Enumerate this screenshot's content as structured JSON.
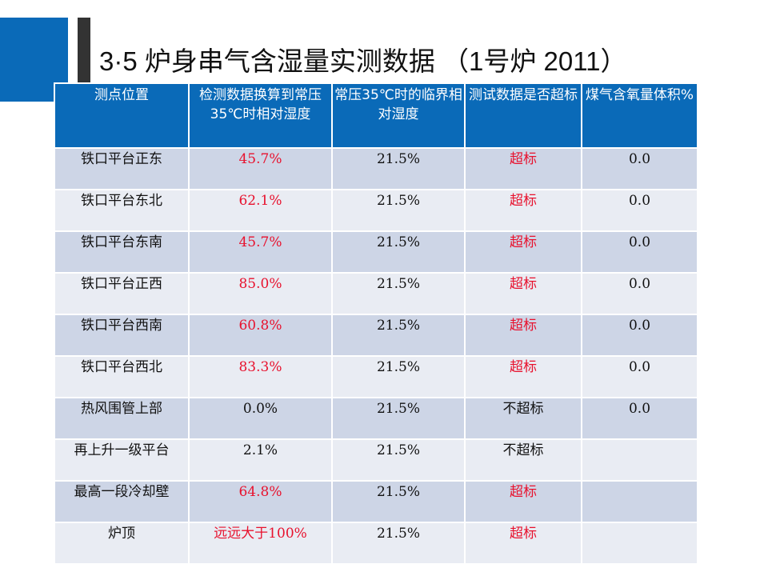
{
  "title": "3·5  炉身串气含湿量实测数据 （1号炉  2011）",
  "colors": {
    "accent": "#0a6ab8",
    "highlight": "#e8112d",
    "row_dark": "#cdd5e6",
    "row_light": "#e9ecf3"
  },
  "table": {
    "headers": [
      "测点位置",
      "检测数据换算到常压35℃时相对湿度",
      "常压35℃时的临界相对湿度",
      "测试数据是否超标",
      "煤气含氧量体积%"
    ],
    "rows": [
      {
        "location": "铁口平台正东",
        "humidity": "45.7%",
        "critical": "21.5%",
        "exceeds": "超标",
        "oxygen": "0.0",
        "flag": true
      },
      {
        "location": "铁口平台东北",
        "humidity": "62.1%",
        "critical": "21.5%",
        "exceeds": "超标",
        "oxygen": "0.0",
        "flag": true
      },
      {
        "location": "铁口平台东南",
        "humidity": "45.7%",
        "critical": "21.5%",
        "exceeds": "超标",
        "oxygen": "0.0",
        "flag": true
      },
      {
        "location": "铁口平台正西",
        "humidity": "85.0%",
        "critical": "21.5%",
        "exceeds": "超标",
        "oxygen": "0.0",
        "flag": true
      },
      {
        "location": "铁口平台西南",
        "humidity": "60.8%",
        "critical": "21.5%",
        "exceeds": "超标",
        "oxygen": "0.0",
        "flag": true
      },
      {
        "location": "铁口平台西北",
        "humidity": "83.3%",
        "critical": "21.5%",
        "exceeds": "超标",
        "oxygen": "0.0",
        "flag": true
      },
      {
        "location": "热风围管上部",
        "humidity": "0.0%",
        "critical": "21.5%",
        "exceeds": "不超标",
        "oxygen": "0.0",
        "flag": false
      },
      {
        "location": "再上升一级平台",
        "humidity": "2.1%",
        "critical": "21.5%",
        "exceeds": "不超标",
        "oxygen": "",
        "flag": false
      },
      {
        "location": "最高一段冷却壁",
        "humidity": "64.8%",
        "critical": "21.5%",
        "exceeds": "超标",
        "oxygen": "",
        "flag": true
      },
      {
        "location": "炉顶",
        "humidity": "远远大于100%",
        "critical": "21.5%",
        "exceeds": "超标",
        "oxygen": "",
        "flag": true
      }
    ]
  }
}
